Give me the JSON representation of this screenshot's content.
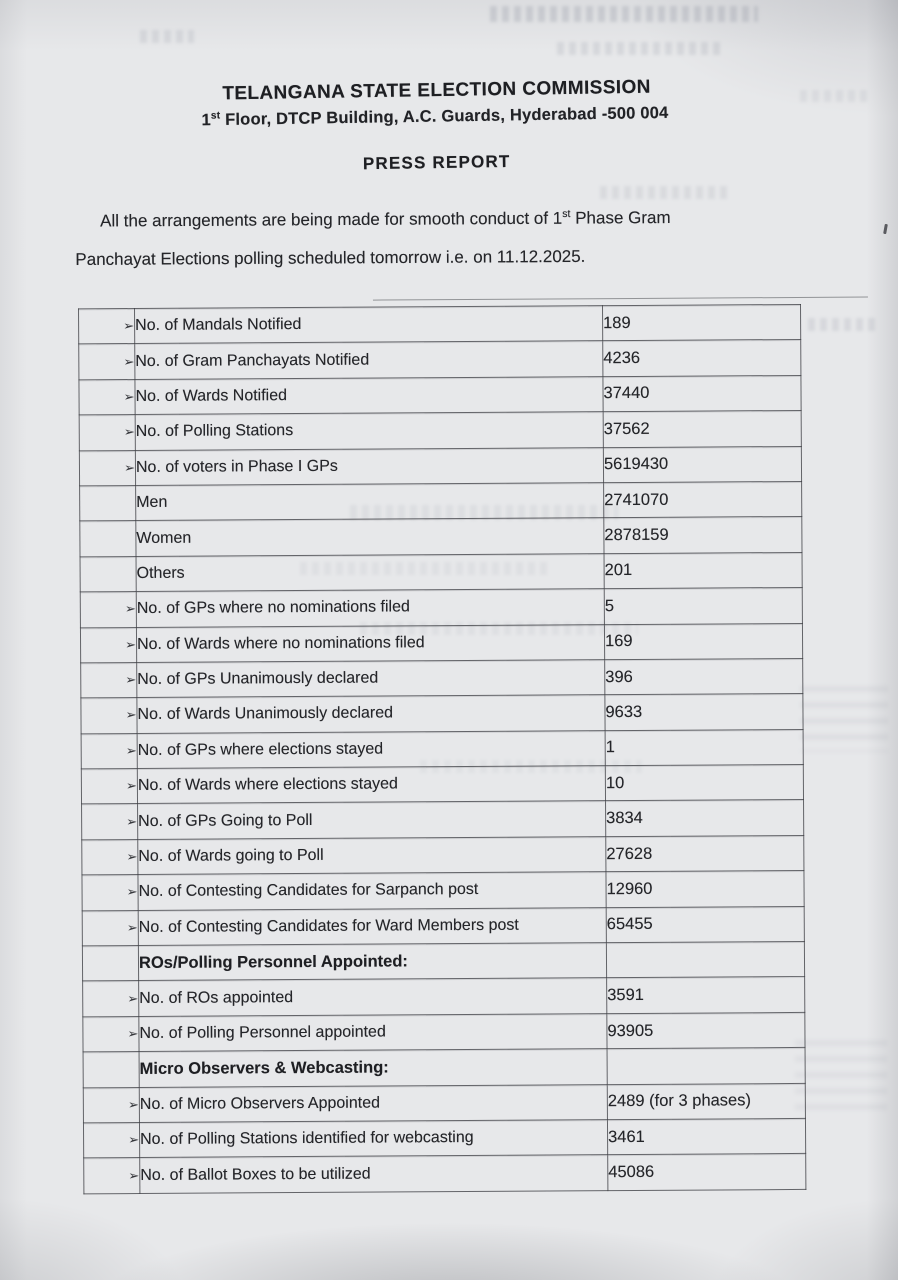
{
  "page": {
    "org_name": "TELANGANA STATE ELECTION COMMISSION",
    "address": {
      "pre": "1",
      "sup": "st",
      "rest": " Floor, DTCP Building, A.C. Guards, Hyderabad -500 004"
    },
    "report_title": "PRESS REPORT",
    "intro": {
      "line1_pre": "All the arrangements are being made for smooth conduct of 1",
      "line1_sup": "st",
      "line1_rest": " Phase Gram",
      "line2": "Panchayat Elections polling scheduled tomorrow i.e. on 11.12.2025."
    }
  },
  "table": {
    "bullet_char": "➢",
    "rows": [
      {
        "bullet": true,
        "bold": false,
        "label": "No. of Mandals Notified",
        "value": "189"
      },
      {
        "bullet": true,
        "bold": false,
        "label": "No. of Gram Panchayats Notified",
        "value": "4236"
      },
      {
        "bullet": true,
        "bold": false,
        "label": "No. of Wards Notified",
        "value": "37440"
      },
      {
        "bullet": true,
        "bold": false,
        "label": "No. of Polling Stations",
        "value": "37562"
      },
      {
        "bullet": true,
        "bold": false,
        "label": "No. of voters in Phase I GPs",
        "value": "5619430"
      },
      {
        "bullet": false,
        "bold": false,
        "label": "Men",
        "value": "2741070"
      },
      {
        "bullet": false,
        "bold": false,
        "label": "Women",
        "value": "2878159"
      },
      {
        "bullet": false,
        "bold": false,
        "label": "Others",
        "value": "201"
      },
      {
        "bullet": true,
        "bold": false,
        "label": "No. of GPs where no nominations filed",
        "value": "5"
      },
      {
        "bullet": true,
        "bold": false,
        "label": "No. of Wards where no nominations filed",
        "value": "169"
      },
      {
        "bullet": true,
        "bold": false,
        "label": "No. of GPs Unanimously declared",
        "value": "396"
      },
      {
        "bullet": true,
        "bold": false,
        "label": "No. of Wards Unanimously declared",
        "value": "9633"
      },
      {
        "bullet": true,
        "bold": false,
        "label": "No. of GPs where elections stayed",
        "value": "1"
      },
      {
        "bullet": true,
        "bold": false,
        "label": "No. of Wards where elections stayed",
        "value": "10"
      },
      {
        "bullet": true,
        "bold": false,
        "label": "No. of GPs Going to Poll",
        "value": "3834"
      },
      {
        "bullet": true,
        "bold": false,
        "label": "No. of Wards going to Poll",
        "value": "27628"
      },
      {
        "bullet": true,
        "bold": false,
        "label": "No. of Contesting Candidates for Sarpanch post",
        "value": "12960"
      },
      {
        "bullet": true,
        "bold": false,
        "label": "No. of Contesting Candidates for Ward Members post",
        "value": "65455"
      },
      {
        "bullet": false,
        "bold": true,
        "label": "ROs/Polling Personnel Appointed:",
        "value": ""
      },
      {
        "bullet": true,
        "bold": false,
        "label": "No. of ROs appointed",
        "value": "3591"
      },
      {
        "bullet": true,
        "bold": false,
        "label": "No. of Polling Personnel appointed",
        "value": "93905"
      },
      {
        "bullet": false,
        "bold": true,
        "label": "Micro Observers & Webcasting:",
        "value": ""
      },
      {
        "bullet": true,
        "bold": false,
        "label": "No. of Micro Observers Appointed",
        "value": "2489 (for 3 phases)"
      },
      {
        "bullet": true,
        "bold": false,
        "label": "No. of Polling Stations identified for webcasting",
        "value": "3461"
      },
      {
        "bullet": true,
        "bold": false,
        "label": "No. of Ballot Boxes to be utilized",
        "value": "45086"
      }
    ]
  }
}
